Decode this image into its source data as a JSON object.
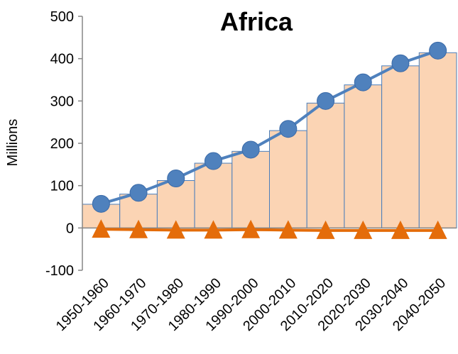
{
  "chart_data": {
    "type": "bar",
    "title": "Africa",
    "xlabel": "",
    "ylabel": "Millions",
    "ylim": [
      -100,
      500
    ],
    "yticks": [
      -100,
      0,
      100,
      200,
      300,
      400,
      500
    ],
    "categories": [
      "1950-1960",
      "1960-1970",
      "1970-1980",
      "1980-1990",
      "1990-2000",
      "2000-2010",
      "2010-2020",
      "2020-2030",
      "2030-2040",
      "2040-2050"
    ],
    "bars": [
      56,
      80,
      112,
      153,
      181,
      230,
      295,
      338,
      383,
      414
    ],
    "bar_fill": "#FBD4B4",
    "bar_stroke": "#4A7EBB",
    "series": [
      {
        "type": "line",
        "marker": "circle",
        "color": "#4F81BD",
        "values": [
          57,
          83,
          117,
          158,
          185,
          234,
          300,
          344,
          389,
          419
        ]
      },
      {
        "type": "line",
        "marker": "triangle",
        "color": "#E46C0A",
        "values": [
          -3,
          -4,
          -5,
          -5,
          -4,
          -5,
          -6,
          -6,
          -6,
          -6
        ]
      }
    ],
    "grid": false,
    "legend": "none"
  }
}
